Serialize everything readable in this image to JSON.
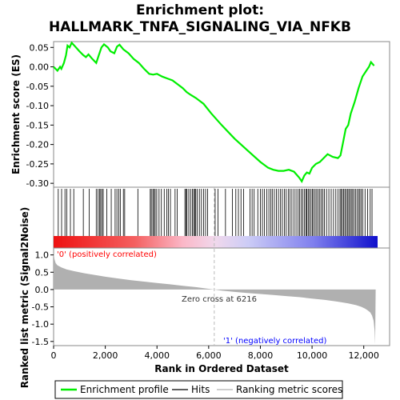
{
  "chart_data": {
    "type": "line",
    "title_line1": "Enrichment plot:",
    "title_line2": "HALLMARK_TNFA_SIGNALING_VIA_NFKB",
    "colors": {
      "enrichment": "#00ee00",
      "hits": "#000000",
      "metric_fill": "#b0b0b0",
      "positive_text": "#ff0000",
      "negative_text": "#0000ff",
      "zero_line": "#bbbbbb"
    },
    "top_panel": {
      "ylabel": "Enrichment score (ES)",
      "ylim": [
        -0.31,
        0.065
      ],
      "yticks": [
        0.05,
        0.0,
        -0.05,
        -0.1,
        -0.15,
        -0.2,
        -0.25,
        -0.3
      ],
      "ytick_labels": [
        "0.05",
        "0.00",
        "-0.05",
        "-0.10",
        "-0.15",
        "-0.20",
        "-0.25",
        "-0.30"
      ],
      "es_curve": [
        [
          0,
          0.0
        ],
        [
          150,
          -0.01
        ],
        [
          250,
          0.0
        ],
        [
          300,
          -0.005
        ],
        [
          400,
          0.01
        ],
        [
          480,
          0.03
        ],
        [
          540,
          0.055
        ],
        [
          620,
          0.05
        ],
        [
          700,
          0.062
        ],
        [
          800,
          0.055
        ],
        [
          1000,
          0.04
        ],
        [
          1150,
          0.03
        ],
        [
          1250,
          0.025
        ],
        [
          1350,
          0.032
        ],
        [
          1500,
          0.02
        ],
        [
          1650,
          0.01
        ],
        [
          1750,
          0.03
        ],
        [
          1850,
          0.05
        ],
        [
          1950,
          0.058
        ],
        [
          2100,
          0.05
        ],
        [
          2200,
          0.04
        ],
        [
          2350,
          0.035
        ],
        [
          2450,
          0.052
        ],
        [
          2550,
          0.057
        ],
        [
          2700,
          0.045
        ],
        [
          2900,
          0.035
        ],
        [
          3100,
          0.02
        ],
        [
          3300,
          0.01
        ],
        [
          3500,
          -0.005
        ],
        [
          3700,
          -0.018
        ],
        [
          3850,
          -0.02
        ],
        [
          4000,
          -0.018
        ],
        [
          4200,
          -0.025
        ],
        [
          4400,
          -0.03
        ],
        [
          4600,
          -0.035
        ],
        [
          4800,
          -0.045
        ],
        [
          5000,
          -0.055
        ],
        [
          5150,
          -0.065
        ],
        [
          5300,
          -0.072
        ],
        [
          5500,
          -0.08
        ],
        [
          5800,
          -0.095
        ],
        [
          6100,
          -0.12
        ],
        [
          6500,
          -0.15
        ],
        [
          7000,
          -0.185
        ],
        [
          7500,
          -0.215
        ],
        [
          8000,
          -0.245
        ],
        [
          8300,
          -0.26
        ],
        [
          8500,
          -0.265
        ],
        [
          8700,
          -0.268
        ],
        [
          8900,
          -0.268
        ],
        [
          9100,
          -0.265
        ],
        [
          9300,
          -0.27
        ],
        [
          9500,
          -0.285
        ],
        [
          9600,
          -0.295
        ],
        [
          9700,
          -0.28
        ],
        [
          9800,
          -0.272
        ],
        [
          9900,
          -0.275
        ],
        [
          10000,
          -0.26
        ],
        [
          10150,
          -0.25
        ],
        [
          10300,
          -0.245
        ],
        [
          10450,
          -0.235
        ],
        [
          10600,
          -0.225
        ],
        [
          10800,
          -0.232
        ],
        [
          11000,
          -0.235
        ],
        [
          11100,
          -0.228
        ],
        [
          11200,
          -0.195
        ],
        [
          11300,
          -0.16
        ],
        [
          11400,
          -0.15
        ],
        [
          11500,
          -0.12
        ],
        [
          11650,
          -0.09
        ],
        [
          11800,
          -0.055
        ],
        [
          11950,
          -0.025
        ],
        [
          12100,
          -0.01
        ],
        [
          12200,
          0.0
        ],
        [
          12280,
          0.012
        ],
        [
          12400,
          0.003
        ]
      ]
    },
    "hits_panel": {
      "hit_positions": [
        180,
        310,
        440,
        510,
        650,
        780,
        1150,
        1380,
        1650,
        1720,
        1780,
        1820,
        1870,
        1920,
        2060,
        2230,
        2380,
        2450,
        2520,
        2580,
        2700,
        2750,
        3260,
        3740,
        3780,
        3840,
        3880,
        3930,
        3990,
        4080,
        4170,
        4280,
        4380,
        4440,
        4520,
        4700,
        4780,
        5080,
        5120,
        5160,
        5230,
        5300,
        5370,
        5420,
        5460,
        5500,
        5560,
        5640,
        5720,
        5800,
        5880,
        5960,
        6250,
        6360,
        6650,
        6920,
        7050,
        7150,
        7250,
        7350,
        7600,
        7680,
        7760,
        7900,
        8000,
        8080,
        8160,
        8250,
        8330,
        8400,
        8460,
        8540,
        8620,
        8700,
        8780,
        8850,
        8930,
        9000,
        9080,
        9150,
        9220,
        9300,
        9380,
        9460,
        9520,
        9580,
        9640,
        9700,
        9760,
        9800,
        9850,
        9900,
        9960,
        10010,
        10060,
        10120,
        10180,
        10240,
        10300,
        10360,
        10420,
        10480,
        10560,
        10650,
        10740,
        10830,
        10920,
        11000,
        11080,
        11120,
        11170,
        11220,
        11270,
        11320,
        11370,
        11420,
        11470,
        11520,
        11570,
        11620,
        11680,
        11740,
        11800,
        11850,
        11900,
        11960,
        12050,
        12150,
        12250,
        12320
      ]
    },
    "metric_panel": {
      "ylabel": "Ranked list metric (Signal2Noise)",
      "xlabel": "Rank in Ordered Dataset",
      "ylim": [
        -1.62,
        1.2
      ],
      "yticks": [
        1.0,
        0.5,
        0.0,
        -0.5,
        -1.0,
        -1.5
      ],
      "ytick_labels": [
        "1.0",
        "0.5",
        "0.0",
        "-0.5",
        "-1.0",
        "-1.5"
      ],
      "xlim": [
        0,
        13000
      ],
      "xticks": [
        0,
        2000,
        4000,
        6000,
        8000,
        10000,
        12000
      ],
      "xtick_labels": [
        "0",
        "2,000",
        "4,000",
        "6,000",
        "8,000",
        "10,000",
        "12,000"
      ],
      "metric_curve": [
        [
          0,
          1.05
        ],
        [
          30,
          0.88
        ],
        [
          80,
          0.76
        ],
        [
          150,
          0.7
        ],
        [
          300,
          0.64
        ],
        [
          500,
          0.58
        ],
        [
          800,
          0.53
        ],
        [
          1200,
          0.47
        ],
        [
          1600,
          0.42
        ],
        [
          2000,
          0.37
        ],
        [
          2500,
          0.32
        ],
        [
          3000,
          0.27
        ],
        [
          3500,
          0.23
        ],
        [
          4000,
          0.19
        ],
        [
          4500,
          0.15
        ],
        [
          5000,
          0.11
        ],
        [
          5500,
          0.07
        ],
        [
          6000,
          0.02
        ],
        [
          6216,
          0.0
        ],
        [
          6500,
          -0.03
        ],
        [
          7000,
          -0.07
        ],
        [
          7500,
          -0.1
        ],
        [
          8000,
          -0.13
        ],
        [
          8500,
          -0.16
        ],
        [
          9000,
          -0.19
        ],
        [
          9500,
          -0.22
        ],
        [
          10000,
          -0.26
        ],
        [
          10500,
          -0.3
        ],
        [
          11000,
          -0.35
        ],
        [
          11400,
          -0.4
        ],
        [
          11700,
          -0.45
        ],
        [
          11900,
          -0.5
        ],
        [
          12050,
          -0.55
        ],
        [
          12150,
          -0.6
        ],
        [
          12250,
          -0.66
        ],
        [
          12320,
          -0.75
        ],
        [
          12380,
          -0.9
        ],
        [
          12420,
          -1.2
        ],
        [
          12440,
          -1.58
        ],
        [
          12460,
          0.0
        ]
      ],
      "zero_cross_label": "Zero cross at 6216",
      "zero_cross_rank": 6216,
      "positive_label": "'0' (positively correlated)",
      "negative_label": "'1' (negatively correlated)"
    },
    "n_genes": 12460,
    "legend": [
      {
        "label": "Enrichment profile"
      },
      {
        "label": "Hits"
      },
      {
        "label": "Ranking metric scores"
      }
    ]
  }
}
